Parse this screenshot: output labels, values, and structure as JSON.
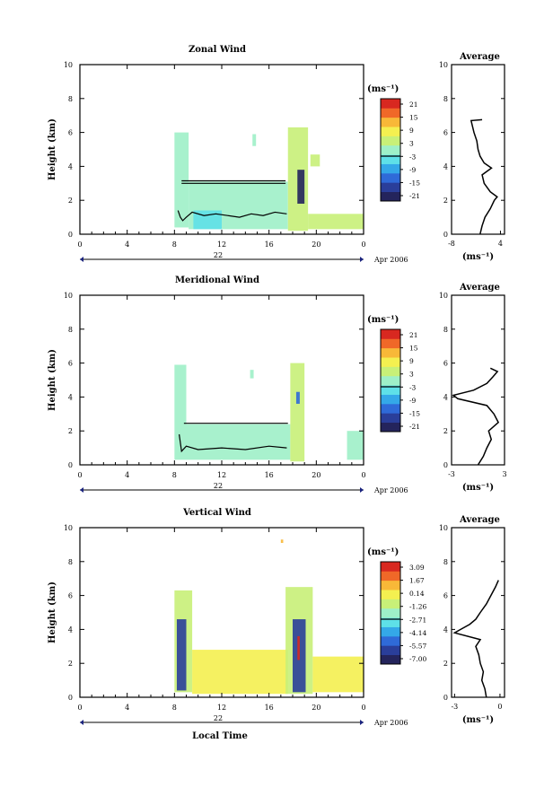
{
  "x_axis_label": "Local Time",
  "date_label": "Apr 2006",
  "day_label": "22",
  "average_title": "Average",
  "colorbar_unit": "(ms⁻¹)",
  "profile_unit": "(ms⁻¹)",
  "y_axis_label": "Height (km)",
  "colors": {
    "scale": [
      "#24245c",
      "#2a3e9a",
      "#2f6ad8",
      "#34a8e8",
      "#5ee0e8",
      "#9ef0c8",
      "#c8f078",
      "#f4f050",
      "#f8b838",
      "#f06828",
      "#d82820"
    ],
    "contour": "#000000"
  },
  "chart_data": [
    {
      "type": "heatmap",
      "title": "Zonal Wind",
      "xlabel": "",
      "ylabel": "Height (km)",
      "xlim": [
        0,
        24
      ],
      "ylim": [
        0,
        10
      ],
      "x_ticks": [
        "0",
        "4",
        "8",
        "12",
        "16",
        "20",
        "0"
      ],
      "y_ticks": [
        "0",
        "2",
        "4",
        "6",
        "8",
        "10"
      ],
      "colorbar": {
        "unit": "(ms⁻¹)",
        "ticks": [
          "21",
          "15",
          "9",
          "3",
          "-3",
          "-9",
          "-15",
          "-21"
        ],
        "range": [
          -24,
          24
        ]
      },
      "regions": [
        {
          "t0": 8.0,
          "t1": 9.2,
          "h0": 0.4,
          "h1": 6.0,
          "v": 0
        },
        {
          "t0": 9.2,
          "t1": 17.6,
          "h0": 0.3,
          "h1": 3.1,
          "v": -1
        },
        {
          "t0": 9.6,
          "t1": 12.0,
          "h0": 0.3,
          "h1": 1.4,
          "v": -6
        },
        {
          "t0": 14.6,
          "t1": 14.9,
          "h0": 5.2,
          "h1": 5.9,
          "v": 2
        },
        {
          "t0": 17.6,
          "t1": 19.3,
          "h0": 0.2,
          "h1": 6.3,
          "v": 4
        },
        {
          "t0": 18.4,
          "t1": 19.0,
          "h0": 1.8,
          "h1": 3.8,
          "v": -20
        },
        {
          "t0": 19.3,
          "t1": 24.0,
          "h0": 0.3,
          "h1": 1.2,
          "v": 3
        },
        {
          "t0": 19.5,
          "t1": 20.3,
          "h0": 4.0,
          "h1": 4.7,
          "v": 3
        }
      ],
      "contour_lines": [
        {
          "t": [
            8.6,
            17.4
          ],
          "h": [
            3.15,
            3.15
          ]
        },
        {
          "t": [
            8.6,
            17.4
          ],
          "h": [
            3.0,
            3.0
          ]
        },
        {
          "t": [
            8.3,
            8.5,
            8.7,
            9.0,
            9.5,
            10.5,
            11.5,
            12.5,
            13.5,
            14.5,
            15.5,
            16.5,
            17.5
          ],
          "h": [
            1.4,
            1.0,
            0.8,
            1.0,
            1.3,
            1.1,
            1.2,
            1.1,
            1.0,
            1.2,
            1.1,
            1.3,
            1.2
          ]
        }
      ],
      "profile": {
        "xlim": [
          -8,
          5
        ],
        "x_ticks": [
          "-8",
          "4"
        ],
        "h": [
          0.0,
          0.5,
          1.0,
          1.5,
          2.0,
          2.2,
          2.5,
          3.0,
          3.5,
          3.9,
          4.2,
          4.6,
          5.0,
          5.5,
          6.0,
          6.5,
          6.7,
          6.75
        ],
        "v": [
          -1.0,
          -0.5,
          0.2,
          1.5,
          2.5,
          3.2,
          1.5,
          0.0,
          -0.5,
          1.8,
          0.0,
          -1.0,
          -1.5,
          -1.8,
          -2.5,
          -3.0,
          -3.2,
          -0.5
        ]
      }
    },
    {
      "type": "heatmap",
      "title": "Meridional Wind",
      "xlabel": "",
      "ylabel": "Height (km)",
      "xlim": [
        0,
        24
      ],
      "ylim": [
        0,
        10
      ],
      "x_ticks": [
        "0",
        "4",
        "8",
        "12",
        "16",
        "20",
        "0"
      ],
      "y_ticks": [
        "0",
        "2",
        "4",
        "6",
        "8",
        "10"
      ],
      "colorbar": {
        "unit": "(ms⁻¹)",
        "ticks": [
          "21",
          "15",
          "9",
          "3",
          "-3",
          "-9",
          "-15",
          "-21"
        ],
        "range": [
          -24,
          24
        ]
      },
      "regions": [
        {
          "t0": 8.0,
          "t1": 9.0,
          "h0": 0.3,
          "h1": 5.9,
          "v": 0
        },
        {
          "t0": 9.0,
          "t1": 17.8,
          "h0": 0.3,
          "h1": 2.4,
          "v": -1
        },
        {
          "t0": 14.4,
          "t1": 14.7,
          "h0": 5.1,
          "h1": 5.6,
          "v": 1
        },
        {
          "t0": 17.8,
          "t1": 19.0,
          "h0": 0.2,
          "h1": 6.0,
          "v": 3
        },
        {
          "t0": 18.3,
          "t1": 18.6,
          "h0": 3.6,
          "h1": 4.3,
          "v": -12
        },
        {
          "t0": 22.6,
          "t1": 24.0,
          "h0": 0.3,
          "h1": 2.0,
          "v": 0
        }
      ],
      "contour_lines": [
        {
          "t": [
            8.8,
            17.6
          ],
          "h": [
            2.45,
            2.45
          ]
        },
        {
          "t": [
            8.4,
            8.6,
            9.0,
            10.0,
            12.0,
            14.0,
            16.0,
            17.5
          ],
          "h": [
            1.8,
            0.8,
            1.1,
            0.9,
            1.0,
            0.9,
            1.1,
            1.0
          ]
        }
      ],
      "profile": {
        "xlim": [
          -3,
          3
        ],
        "x_ticks": [
          "-3",
          "3"
        ],
        "h": [
          0.0,
          0.5,
          1.0,
          1.5,
          2.0,
          2.5,
          3.0,
          3.5,
          3.9,
          4.1,
          4.4,
          4.8,
          5.2,
          5.5,
          5.7
        ],
        "v": [
          0.0,
          0.6,
          1.0,
          1.5,
          1.2,
          2.3,
          1.8,
          1.0,
          -2.3,
          -2.8,
          -0.5,
          1.0,
          1.7,
          2.2,
          1.4
        ]
      }
    },
    {
      "type": "heatmap",
      "title": "Vertical Wind",
      "xlabel": "Local Time",
      "ylabel": "Height (km)",
      "xlim": [
        0,
        24
      ],
      "ylim": [
        0,
        10
      ],
      "x_ticks": [
        "0",
        "4",
        "8",
        "12",
        "16",
        "20",
        "0"
      ],
      "y_ticks": [
        "0",
        "2",
        "4",
        "6",
        "8",
        "10"
      ],
      "colorbar": {
        "unit": "(ms⁻¹)",
        "ticks": [
          "3.09",
          "1.67",
          "0.14",
          "-1.26",
          "-2.71",
          "-4.14",
          "-5.57",
          "-7.00"
        ],
        "range": [
          -8.0,
          3.8
        ]
      },
      "regions": [
        {
          "t0": 8.0,
          "t1": 9.5,
          "h0": 0.3,
          "h1": 6.3,
          "v": -1.5
        },
        {
          "t0": 9.5,
          "t1": 17.6,
          "h0": 0.2,
          "h1": 2.8,
          "v": 0.2
        },
        {
          "t0": 8.2,
          "t1": 9.0,
          "h0": 0.4,
          "h1": 4.6,
          "v": -6.0
        },
        {
          "t0": 17.4,
          "t1": 19.7,
          "h0": 0.2,
          "h1": 6.5,
          "v": -1.0
        },
        {
          "t0": 18.0,
          "t1": 19.1,
          "h0": 0.3,
          "h1": 4.6,
          "v": -6.5
        },
        {
          "t0": 18.4,
          "t1": 18.6,
          "h0": 2.2,
          "h1": 3.6,
          "v": 3.0
        },
        {
          "t0": 19.7,
          "t1": 24.0,
          "h0": 0.3,
          "h1": 2.4,
          "v": 0.3
        },
        {
          "t0": 17.0,
          "t1": 17.2,
          "h0": 9.1,
          "h1": 9.3,
          "v": 1.0
        }
      ],
      "contour_lines": [],
      "profile": {
        "xlim": [
          -3.2,
          0.3
        ],
        "x_ticks": [
          "-3",
          "0"
        ],
        "h": [
          0.0,
          0.5,
          1.0,
          1.5,
          2.0,
          2.5,
          3.0,
          3.4,
          3.8,
          4.0,
          4.3,
          4.6,
          5.0,
          5.5,
          6.0,
          6.5,
          6.9
        ],
        "v": [
          -0.9,
          -1.0,
          -1.2,
          -1.1,
          -1.3,
          -1.4,
          -1.6,
          -1.3,
          -3.0,
          -2.6,
          -2.0,
          -1.6,
          -1.3,
          -0.9,
          -0.6,
          -0.3,
          -0.1
        ]
      }
    }
  ]
}
